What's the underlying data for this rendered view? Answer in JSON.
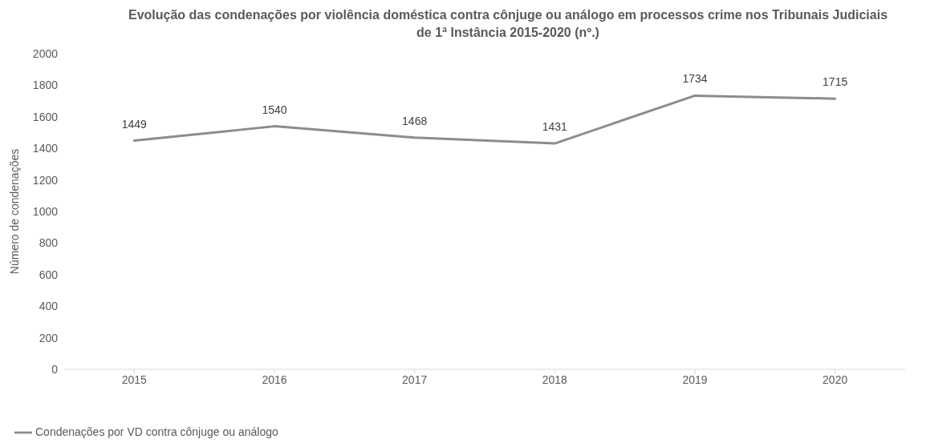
{
  "chart_data": {
    "type": "line",
    "title": "Evolução das condenações por violência doméstica contra cônjuge ou análogo em processos crime nos Tribunais Judiciais de 1ª Instância 2015-2020 (nº.)",
    "ylabel": "Número de condenações",
    "categories": [
      "2015",
      "2016",
      "2017",
      "2018",
      "2019",
      "2020"
    ],
    "series": [
      {
        "name": "Condenações por VD contra cônjuge ou análogo",
        "color": "#8c8c8c",
        "values": [
          1449,
          1540,
          1468,
          1431,
          1734,
          1715
        ]
      }
    ],
    "ylim": [
      0,
      2000
    ],
    "yticks": [
      0,
      200,
      400,
      600,
      800,
      1000,
      1200,
      1400,
      1600,
      1800,
      2000
    ],
    "grid": false,
    "legend": "bottom left",
    "data_labels": true,
    "marker": "none",
    "line_style": "solid"
  }
}
